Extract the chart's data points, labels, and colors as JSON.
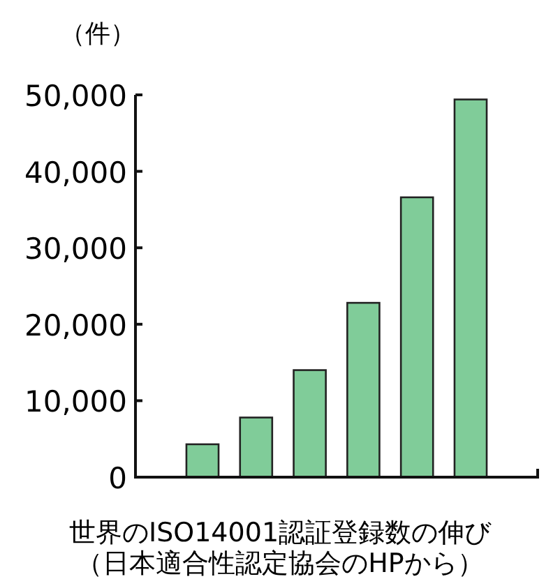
{
  "chart_data": {
    "type": "bar",
    "title": "世界のISO14001認証登録数の伸び",
    "ylabel": "（件）",
    "annotations": [
      "（日本適合性認定協会のHPから）"
    ],
    "categories": [
      null,
      null,
      null,
      null,
      null,
      null
    ],
    "values": [
      4300,
      7800,
      14000,
      22800,
      36600,
      49400
    ],
    "color": "#80cc99",
    "ylim": [
      0,
      50000
    ],
    "yticks": [
      0,
      {
        "value": 10000,
        "label": "10,000"
      },
      {
        "value": 20000,
        "label": "20,000"
      },
      {
        "value": 30000,
        "label": "30,000"
      },
      {
        "value": 40000,
        "label": "40,000"
      },
      {
        "value": 50000,
        "label": "50,000"
      }
    ],
    "grid": false
  }
}
